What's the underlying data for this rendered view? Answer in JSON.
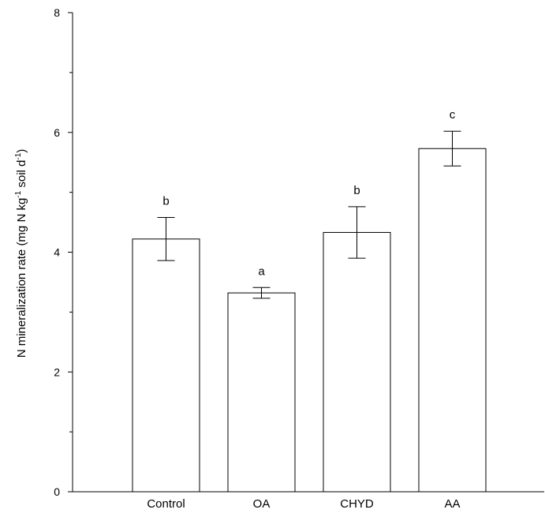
{
  "chart_data": {
    "type": "bar",
    "categories": [
      "Control",
      "OA",
      "CHYD",
      "AA"
    ],
    "values": [
      4.22,
      3.32,
      4.33,
      5.73
    ],
    "errors": [
      0.36,
      0.09,
      0.43,
      0.29
    ],
    "significance_letters": [
      "b",
      "a",
      "b",
      "c"
    ],
    "title": "",
    "xlabel": "",
    "ylabel": {
      "part1": "N mineralization rate (mg N kg",
      "sup1": "-1",
      "part2": " soil d",
      "sup2": "-1",
      "part3": ")"
    },
    "ylim": [
      0,
      8
    ],
    "yticks": [
      0,
      2,
      4,
      6,
      8
    ],
    "grid": false,
    "bar_fill": "#ffffff",
    "line_color": "#000000"
  }
}
